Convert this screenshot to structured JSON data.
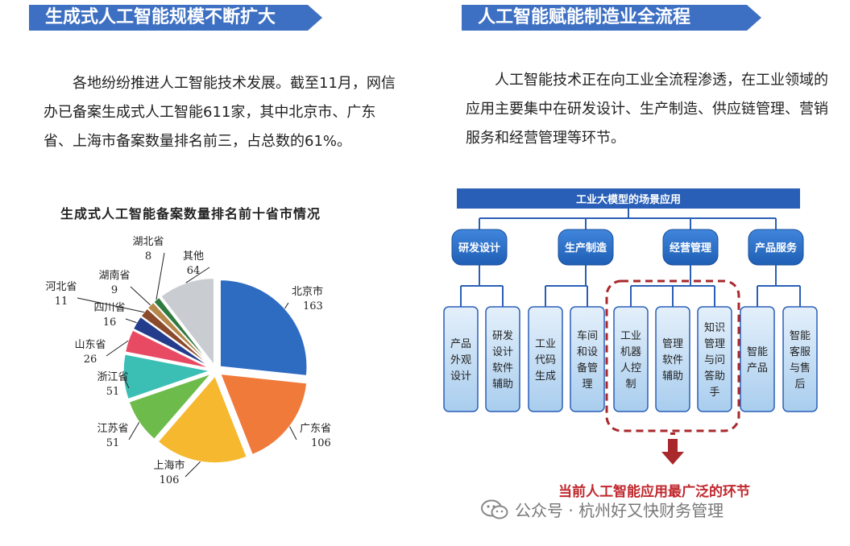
{
  "left": {
    "banner": "生成式人工智能规模不断扩大",
    "paragraph": "各地纷纷推进人工智能技术发展。截至11月，网信办已备案生成式人工智能611家，其中北京市、广东省、上海市备案数量排名前三，占总数的61%。"
  },
  "right": {
    "banner": "人工智能赋能制造业全流程",
    "paragraph": "人工智能技术正在向工业全流程渗透，在工业领域的应用主要集中在研发设计、生产制造、供应链管理、营销服务和经营管理等环节。"
  },
  "chart_data": {
    "type": "pie",
    "title": "生成式人工智能备案数量排名前十省市情况",
    "slices": [
      {
        "label": "北京市",
        "value": 163,
        "color": "#2e6cc2"
      },
      {
        "label": "广东省",
        "value": 106,
        "color": "#f07a3a"
      },
      {
        "label": "上海市",
        "value": 106,
        "color": "#f5b82e"
      },
      {
        "label": "江苏省",
        "value": 51,
        "color": "#6dbb4a"
      },
      {
        "label": "浙江省",
        "value": 51,
        "color": "#3bbfb5"
      },
      {
        "label": "山东省",
        "value": 26,
        "color": "#e84a64"
      },
      {
        "label": "四川省",
        "value": 16,
        "color": "#243c8c"
      },
      {
        "label": "河北省",
        "value": 11,
        "color": "#8b4a2b"
      },
      {
        "label": "湖南省",
        "value": 9,
        "color": "#b5884a"
      },
      {
        "label": "湖北省",
        "value": 8,
        "color": "#2f7a3e"
      },
      {
        "label": "其他",
        "value": 64,
        "color": "#c9cdd2"
      }
    ],
    "start_angle_deg": 0,
    "exploded": true
  },
  "diagram": {
    "title": "工业大模型的场景应用",
    "categories": [
      {
        "label": "研发设计",
        "items": [
          "产品外观设计",
          "研发设计软件辅助"
        ]
      },
      {
        "label": "生产制造",
        "items": [
          "工业代码生成",
          "车间和设备管理"
        ]
      },
      {
        "label": "经营管理",
        "items": [
          "工业机器人控制",
          "管理软件辅助",
          "知识管理与问答助手"
        ]
      },
      {
        "label": "产品服务",
        "items": [
          "智能产品",
          "智能客服与售后"
        ]
      }
    ],
    "highlight_caption": "当前人工智能应用最广泛的环节"
  },
  "watermark": "公众号 · 杭州好又快财务管理"
}
